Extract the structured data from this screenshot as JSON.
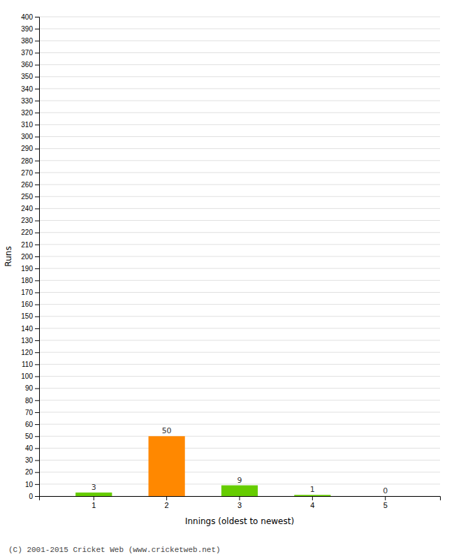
{
  "chart_data": {
    "type": "bar",
    "xlabel": "Innings (oldest to newest)",
    "ylabel": "Runs",
    "categories": [
      1,
      2,
      3,
      4,
      5
    ],
    "values": [
      3,
      50,
      9,
      1,
      0
    ],
    "colors": [
      "#66cc00",
      "#ff8800",
      "#66cc00",
      "#66cc00",
      "#66cc00"
    ],
    "ylim": [
      0,
      400
    ],
    "yticks": [
      0,
      10,
      20,
      30,
      40,
      50,
      60,
      70,
      80,
      90,
      100,
      110,
      120,
      130,
      140,
      150,
      160,
      170,
      180,
      190,
      200,
      210,
      220,
      230,
      240,
      250,
      260,
      270,
      280,
      290,
      300,
      310,
      320,
      330,
      340,
      350,
      360,
      370,
      380,
      390,
      400
    ],
    "grid": true,
    "data_labels": true,
    "annotations": [
      "(C) 2001-2015 Cricket Web (www.cricketweb.net)"
    ]
  }
}
